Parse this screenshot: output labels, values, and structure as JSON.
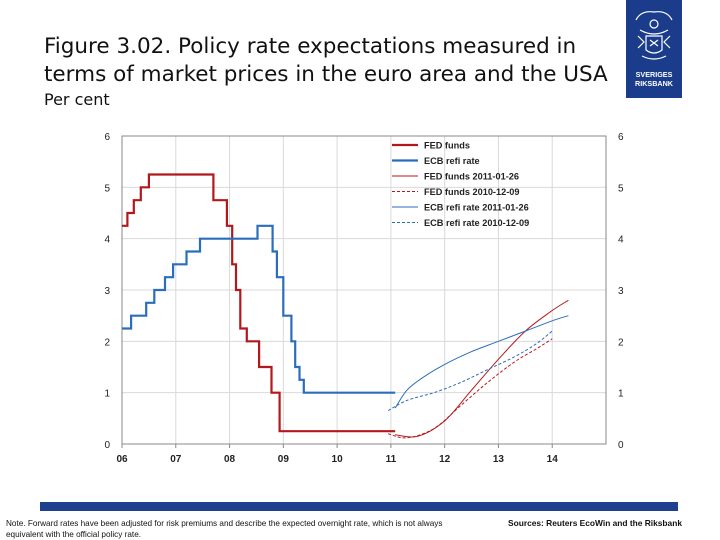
{
  "header": {
    "title_line1": "Figure 3.02. Policy rate expectations measured in",
    "title_line2": "terms of market prices in the euro area and the USA",
    "subtitle": "Per cent"
  },
  "logo": {
    "line1": "SVERIGES",
    "line2": "RIKSBANK",
    "color": "#1b3c8b"
  },
  "footer": {
    "note": "Note. Forward rates have been adjusted for risk premiums and describe the expected overnight rate, which is not always equivalent with the official policy rate.",
    "sources": "Sources: Reuters EcoWin and the Riksbank",
    "bar_color": "#1f3f8f"
  },
  "chart_data": {
    "type": "line",
    "title": "",
    "xlabel": "",
    "ylabel": "Per cent",
    "xlim": [
      2006.0,
      2015.0
    ],
    "ylim": [
      0,
      6
    ],
    "x_ticks": [
      2006,
      2007,
      2008,
      2009,
      2010,
      2011,
      2012,
      2013,
      2014
    ],
    "x_tick_labels": [
      "06",
      "07",
      "08",
      "09",
      "10",
      "11",
      "12",
      "13",
      "14"
    ],
    "y_ticks": [
      0,
      1,
      2,
      3,
      4,
      5,
      6
    ],
    "y_tick_labels": [
      "0",
      "1",
      "2",
      "3",
      "4",
      "5",
      "6"
    ],
    "legend_position": "top-center",
    "series": [
      {
        "name": "FED funds",
        "color": "#b2181b",
        "style": "solid-bold",
        "step": true,
        "x": [
          2006.0,
          2006.1,
          2006.22,
          2006.35,
          2006.45,
          2006.5,
          2007.7,
          2007.95,
          2008.05,
          2008.12,
          2008.2,
          2008.32,
          2008.55,
          2008.78,
          2008.93,
          2011.08
        ],
        "y": [
          4.25,
          4.5,
          4.75,
          5.0,
          5.0,
          5.25,
          4.75,
          4.25,
          3.5,
          3.0,
          2.25,
          2.0,
          1.5,
          1.0,
          0.25,
          0.25
        ]
      },
      {
        "name": "ECB refi rate",
        "color": "#2a6ebb",
        "style": "solid-bold",
        "step": true,
        "x": [
          2006.0,
          2006.17,
          2006.45,
          2006.6,
          2006.8,
          2006.95,
          2007.2,
          2007.45,
          2008.52,
          2008.8,
          2008.88,
          2009.0,
          2009.15,
          2009.22,
          2009.3,
          2009.38,
          2011.08
        ],
        "y": [
          2.25,
          2.5,
          2.75,
          3.0,
          3.25,
          3.5,
          3.75,
          4.0,
          4.25,
          3.75,
          3.25,
          2.5,
          2.0,
          1.5,
          1.25,
          1.0,
          1.0
        ]
      },
      {
        "name": "FED funds 2011-01-26",
        "color": "#b2181b",
        "style": "solid-thin",
        "x": [
          2011.08,
          2011.5,
          2012.0,
          2012.5,
          2013.0,
          2013.5,
          2014.0,
          2014.3
        ],
        "y": [
          0.18,
          0.15,
          0.45,
          1.05,
          1.65,
          2.2,
          2.6,
          2.8
        ]
      },
      {
        "name": "FED funds 2010-12-09",
        "color": "#b2181b",
        "style": "dashed",
        "x": [
          2010.95,
          2011.3,
          2011.8,
          2012.3,
          2012.8,
          2013.3,
          2013.7,
          2014.0
        ],
        "y": [
          0.2,
          0.12,
          0.3,
          0.75,
          1.2,
          1.6,
          1.85,
          2.05
        ]
      },
      {
        "name": "ECB refi rate 2011-01-26",
        "color": "#2a6ebb",
        "style": "solid-thin",
        "x": [
          2011.08,
          2011.3,
          2011.6,
          2012.0,
          2012.5,
          2013.0,
          2013.5,
          2014.0,
          2014.3
        ],
        "y": [
          0.7,
          1.05,
          1.3,
          1.55,
          1.8,
          2.0,
          2.2,
          2.4,
          2.5
        ]
      },
      {
        "name": "ECB refi rate 2010-12-09",
        "color": "#2a6ebb",
        "style": "dashed",
        "x": [
          2010.95,
          2011.3,
          2011.8,
          2012.3,
          2012.8,
          2013.3,
          2013.7,
          2014.0
        ],
        "y": [
          0.65,
          0.85,
          1.0,
          1.2,
          1.45,
          1.7,
          1.95,
          2.2
        ]
      }
    ]
  }
}
